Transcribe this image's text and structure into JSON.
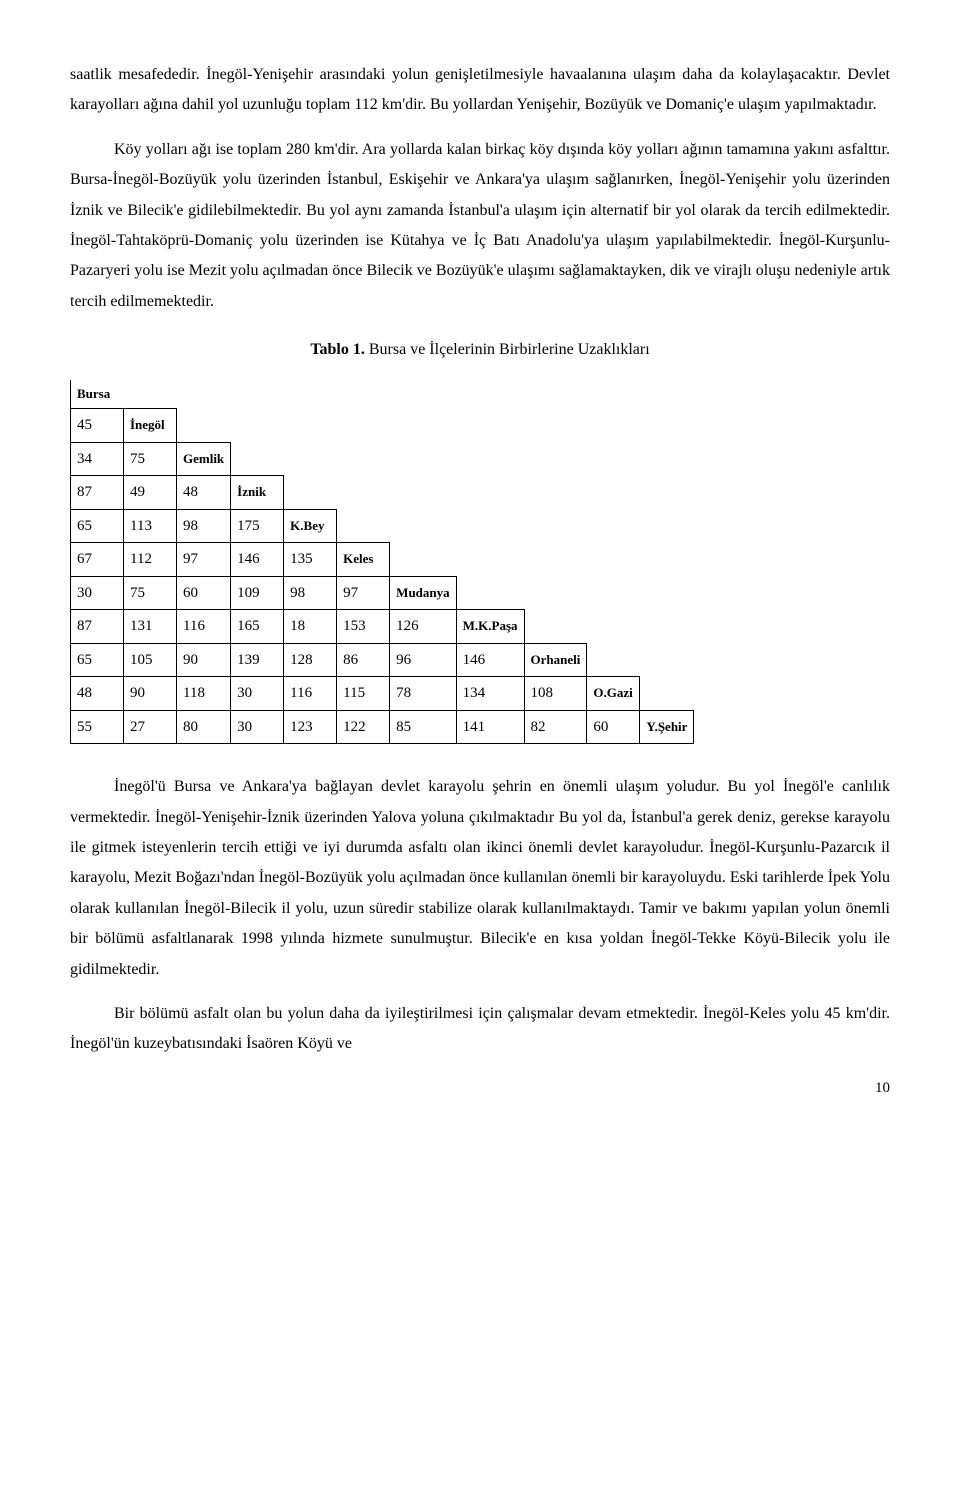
{
  "paragraphs": {
    "p1": "saatlik mesafededir. İnegöl-Yenişehir arasındaki yolun genişletilmesiyle havaalanına ulaşım daha da kolaylaşacaktır. Devlet karayolları ağına dahil yol uzunluğu toplam 112 km'dir. Bu yollardan Yenişehir, Bozüyük ve Domaniç'e ulaşım yapılmaktadır.",
    "p2": "Köy yolları ağı ise toplam 280 km'dir. Ara yollarda kalan birkaç köy dışında köy yolları ağının tamamına yakını asfalttır. Bursa-İnegöl-Bozüyük yolu üzerinden İstanbul, Eskişehir ve Ankara'ya ulaşım sağlanırken, İnegöl-Yenişehir yolu üzerinden İznik ve Bilecik'e gidilebilmektedir. Bu yol aynı zamanda İstanbul'a ulaşım için alternatif bir yol olarak da tercih edilmektedir. İnegöl-Tahtaköprü-Domaniç yolu üzerinden ise Kütahya ve İç Batı Anadolu'ya ulaşım yapılabilmektedir. İnegöl-Kurşunlu-Pazaryeri yolu ise Mezit yolu açılmadan önce Bilecik ve Bozüyük'e ulaşımı sağlamaktayken, dik ve virajlı oluşu nedeniyle artık tercih edilmemektedir.",
    "p3": "İnegöl'ü Bursa ve Ankara'ya bağlayan devlet karayolu şehrin en önemli ulaşım yoludur. Bu yol İnegöl'e canlılık vermektedir. İnegöl-Yenişehir-İznik üzerinden Yalova yoluna çıkılmaktadır Bu yol da, İstanbul'a gerek deniz, gerekse karayolu ile gitmek isteyenlerin tercih ettiği ve iyi durumda asfaltı olan ikinci önemli devlet karayoludur. İnegöl-Kurşunlu-Pazarcık il karayolu, Mezit Boğazı'ndan İnegöl-Bozüyük yolu açılmadan önce kullanılan önemli bir karayoluydu. Eski tarihlerde İpek Yolu olarak kullanılan İnegöl-Bilecik il yolu, uzun süredir stabilize olarak kullanılmaktaydı. Tamir ve bakımı yapılan yolun önemli bir bölümü asfaltlanarak 1998 yılında hizmete sunulmuştur. Bilecik'e en kısa yoldan İnegöl-Tekke Köyü-Bilecik yolu ile gidilmektedir.",
    "p4": "Bir bölümü asfalt olan bu yolun daha da iyileştirilmesi için çalışmalar devam etmektedir. İnegöl-Keles yolu 45 km'dir. İnegöl'ün kuzeybatısındaki İsaören Köyü ve"
  },
  "table": {
    "title_bold": "Tablo 1.",
    "title_rest": " Bursa ve İlçelerinin Birbirlerine Uzaklıkları",
    "labels": [
      "Bursa",
      "İnegöl",
      "Gemlik",
      "İznik",
      "K.Bey",
      "Keles",
      "Mudanya",
      "M.K.Paşa",
      "Orhaneli",
      "O.Gazi",
      "Y.Şehir"
    ],
    "rows": [
      [
        "45"
      ],
      [
        "34",
        "75"
      ],
      [
        "87",
        "49",
        "48"
      ],
      [
        "65",
        "113",
        "98",
        "175"
      ],
      [
        "67",
        "112",
        "97",
        "146",
        "135"
      ],
      [
        "30",
        "75",
        "60",
        "109",
        "98",
        "97"
      ],
      [
        "87",
        "131",
        "116",
        "165",
        "18",
        "153",
        "126"
      ],
      [
        "65",
        "105",
        "90",
        "139",
        "128",
        "86",
        "96",
        "146"
      ],
      [
        "48",
        "90",
        "118",
        "30",
        "116",
        "115",
        "78",
        "134",
        "108"
      ],
      [
        "55",
        "27",
        "80",
        "30",
        "123",
        "122",
        "85",
        "141",
        "82",
        "60"
      ]
    ]
  },
  "page_number": "10"
}
